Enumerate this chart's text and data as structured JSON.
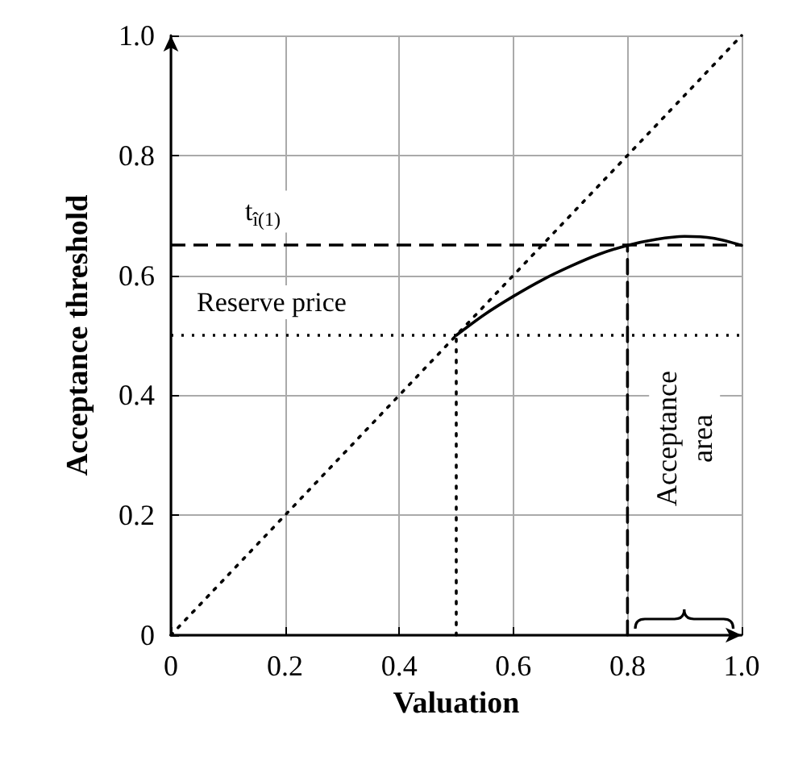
{
  "chart_data": {
    "type": "line",
    "xlabel": "Valuation",
    "ylabel": "Acceptance threshold",
    "xlim": [
      0,
      1
    ],
    "ylim": [
      0,
      1
    ],
    "xticks": [
      0,
      0.2,
      0.4,
      0.6,
      0.8,
      {
        "value": 1,
        "label": "1.0"
      }
    ],
    "yticks": [
      0,
      0.2,
      0.4,
      0.6,
      0.8,
      {
        "value": 1,
        "label": "1.0"
      }
    ],
    "grid": true,
    "marker": "none",
    "series": [
      {
        "color": "#000000",
        "line_style": "dotted",
        "x": [
          0,
          1
        ],
        "values": [
          0,
          1
        ]
      },
      {
        "color": "#000000",
        "line_style": "solid",
        "x": [
          0.5,
          0.55,
          0.6,
          0.65,
          0.7,
          0.75,
          0.8,
          0.85,
          0.9,
          0.95,
          1.0
        ],
        "values": [
          0.5,
          0.535,
          0.565,
          0.592,
          0.615,
          0.635,
          0.65,
          0.66,
          0.665,
          0.662,
          0.65
        ]
      },
      {
        "color": "#000000",
        "line_style": "dashed",
        "x": [
          0.8,
          0.8
        ],
        "values": [
          0,
          0.65
        ]
      },
      {
        "color": "#000000",
        "line_style": "dotted",
        "x": [
          0.5,
          0.5
        ],
        "values": [
          0,
          0.5
        ]
      }
    ],
    "ref_lines": [
      {
        "axis": "y",
        "value": 0.65,
        "label": "t$_{î(1)}$",
        "color": "#000000",
        "line_style": "dashed"
      },
      {
        "axis": "y",
        "value": 0.5,
        "label": "Reserve price",
        "color": "#000000",
        "line_style": "dotted"
      }
    ],
    "annotations": [
      "Acceptance area"
    ]
  }
}
